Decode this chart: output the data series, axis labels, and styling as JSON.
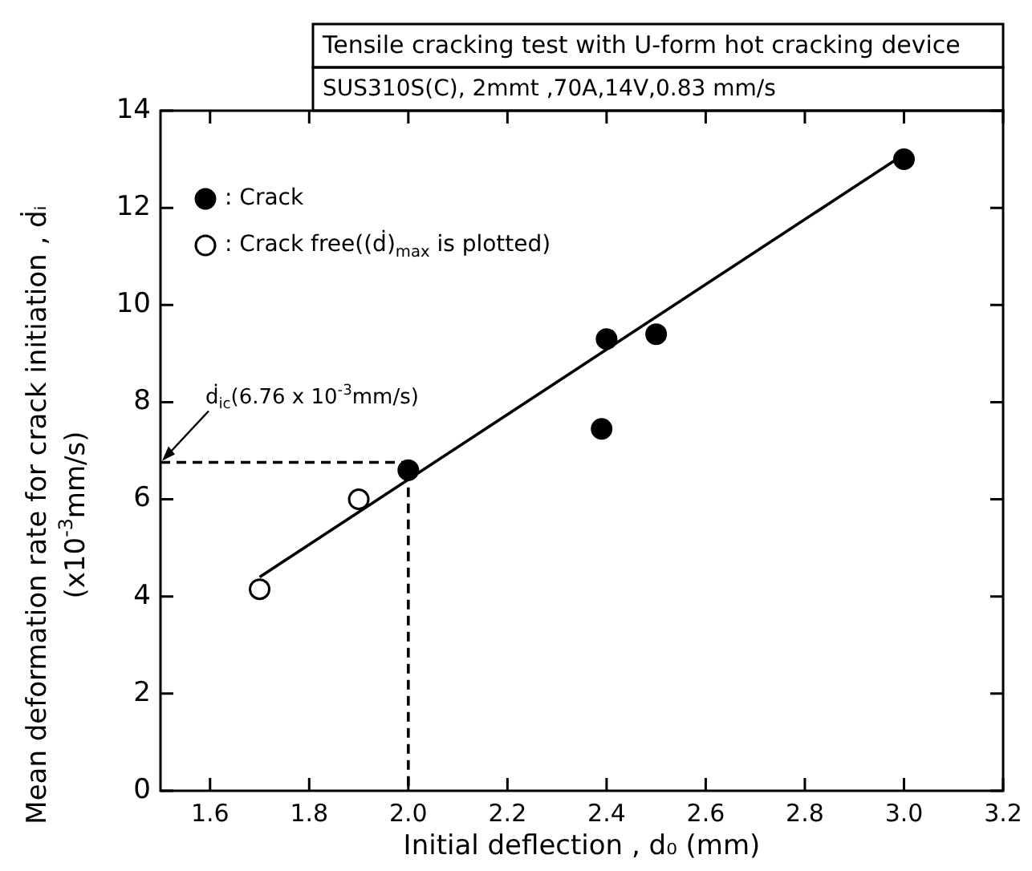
{
  "chart_data": {
    "type": "scatter",
    "title": "Tensile cracking test with U-form hot cracking device",
    "subtitle": "SUS310S(C), 2mmt ,70A,14V,0.83 mm/s",
    "xlabel": "Initial deflection , d₀ (mm)",
    "ylabel": "Mean deformation rate for crack initiation , ḋᵢ (x10$^{-3}$mm/s)",
    "xlim": [
      1.5,
      3.2
    ],
    "xticks": [
      1.6,
      1.8,
      {
        "value": 2.0,
        "label": "2.0"
      },
      2.2,
      2.4,
      2.6,
      2.8,
      {
        "value": 3.0,
        "label": "3.0"
      },
      3.2
    ],
    "ylim": [
      0,
      14
    ],
    "yticks": [
      0,
      2,
      4,
      6,
      8,
      10,
      12,
      14
    ],
    "grid": false,
    "legend": "top left",
    "marker": "circle",
    "series": [
      {
        "name": ": Crack",
        "color": "#000000",
        "x": [
          2.0,
          2.39,
          2.4,
          2.5,
          3.0
        ],
        "values": [
          6.6,
          7.45,
          9.3,
          9.4,
          13.0
        ]
      },
      {
        "name": ": Crack free((ḋ)$_{max}$ is plotted)",
        "color": "#ffffff",
        "x": [
          1.7,
          1.9
        ],
        "values": [
          4.15,
          6.0
        ]
      },
      {
        "type": "line",
        "color": "#000000",
        "marker": "none",
        "line_style": "solid",
        "x": [
          1.7,
          3.0
        ],
        "values": [
          4.4,
          13.1
        ]
      },
      {
        "type": "line",
        "color": "#000000",
        "marker": "none",
        "line_style": "dashed",
        "x": [
          1.5,
          2.0,
          2.0
        ],
        "values": [
          6.76,
          6.76,
          0
        ]
      }
    ],
    "annotations": [
      {
        "text": "ḋ$_{ic}$(6.76 x 10$^{-3}$mm/s)",
        "x": 1.5,
        "y": 6.76
      }
    ]
  }
}
